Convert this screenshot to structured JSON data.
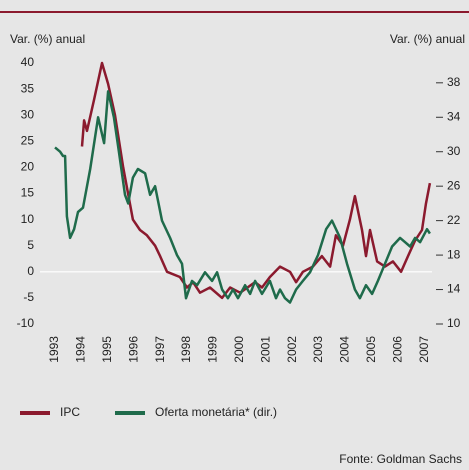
{
  "chart_data": {
    "type": "line",
    "y_label": "Var. (%) anual",
    "y2_label": "Var. (%) anual",
    "source": "Fonte: Goldman Sachs",
    "xlim": [
      1992.43,
      2007.28
    ],
    "xticks": [
      1993,
      1994,
      1995,
      1996,
      1997,
      1998,
      1999,
      2000,
      2001,
      2002,
      2003,
      2004,
      2005,
      2006,
      2007
    ],
    "ylim": [
      -10,
      40
    ],
    "yticks": [
      -10,
      -5,
      0,
      5,
      10,
      15,
      20,
      25,
      30,
      35,
      40
    ],
    "y2lim": [
      10,
      40.3
    ],
    "y2ticks": [
      10,
      14,
      18,
      22,
      26,
      30,
      34,
      38
    ],
    "series": [
      {
        "name": "IPC",
        "color": "#8b1a2e",
        "x": [
          1994.02,
          1994.1,
          1994.21,
          1994.48,
          1994.78,
          1995.01,
          1995.27,
          1995.58,
          1995.95,
          1996.22,
          1996.48,
          1996.79,
          1996.98,
          1997.24,
          1997.73,
          1998.0,
          1998.23,
          1998.49,
          1998.87,
          1999.33,
          1999.63,
          2000.01,
          2000.58,
          2000.84,
          2001.14,
          2001.52,
          2001.9,
          2002.13,
          2002.39,
          2002.77,
          2003.11,
          2003.42,
          2003.64,
          2003.91,
          2004.17,
          2004.36,
          2004.63,
          2004.78,
          2004.93,
          2005.2,
          2005.5,
          2005.8,
          2006.11,
          2006.37,
          2006.64,
          2006.9,
          2007.05,
          2007.2
        ],
        "values": [
          24,
          29,
          27,
          33,
          40,
          36,
          30,
          20,
          10,
          8,
          7,
          5,
          3,
          0,
          -1,
          -3,
          -2,
          -4,
          -3,
          -5,
          -3,
          -4,
          -2,
          -3,
          -1,
          1,
          0,
          -2,
          0,
          1,
          3,
          1,
          7,
          5,
          10,
          14.5,
          8,
          3,
          8,
          2,
          1,
          2,
          0,
          3,
          6,
          8,
          13,
          17
        ]
      },
      {
        "name": "Oferta monetária* (dir.)",
        "color": "#1f6b4b",
        "axis": "y2",
        "x": [
          1993.0,
          1993.19,
          1993.3,
          1993.38,
          1993.45,
          1993.57,
          1993.72,
          1993.87,
          1994.06,
          1994.33,
          1994.63,
          1994.86,
          1995.01,
          1995.23,
          1995.42,
          1995.65,
          1995.77,
          1995.95,
          1996.14,
          1996.41,
          1996.6,
          1996.79,
          1997.05,
          1997.36,
          1997.62,
          1997.81,
          1997.96,
          1998.19,
          1998.38,
          1998.68,
          1998.95,
          1999.14,
          1999.33,
          1999.55,
          1999.74,
          1999.93,
          2000.2,
          2000.39,
          2000.58,
          2000.84,
          2001.14,
          2001.37,
          2001.52,
          2001.71,
          2001.9,
          2002.13,
          2002.39,
          2002.66,
          2002.96,
          2003.27,
          2003.49,
          2003.8,
          2004.06,
          2004.36,
          2004.55,
          2004.78,
          2005.01,
          2005.23,
          2005.5,
          2005.77,
          2006.07,
          2006.26,
          2006.45,
          2006.64,
          2006.83,
          2007.09,
          2007.2
        ],
        "values": [
          30.5,
          30,
          29.5,
          29.5,
          22.5,
          20,
          21,
          23,
          23.5,
          28,
          34,
          31,
          37,
          34,
          30,
          25,
          24,
          27,
          28,
          27.5,
          25,
          26,
          22,
          20,
          18,
          17,
          13,
          15,
          14.5,
          16,
          15,
          16,
          14,
          13,
          14,
          13,
          14.5,
          13.5,
          15,
          13.5,
          15,
          13,
          14,
          13,
          12.5,
          14,
          15,
          16,
          18,
          21,
          22,
          20,
          17,
          14,
          13,
          14.5,
          13.5,
          15,
          17,
          19,
          20,
          19.5,
          19,
          20,
          19.5,
          21,
          20.5
        ]
      }
    ]
  }
}
